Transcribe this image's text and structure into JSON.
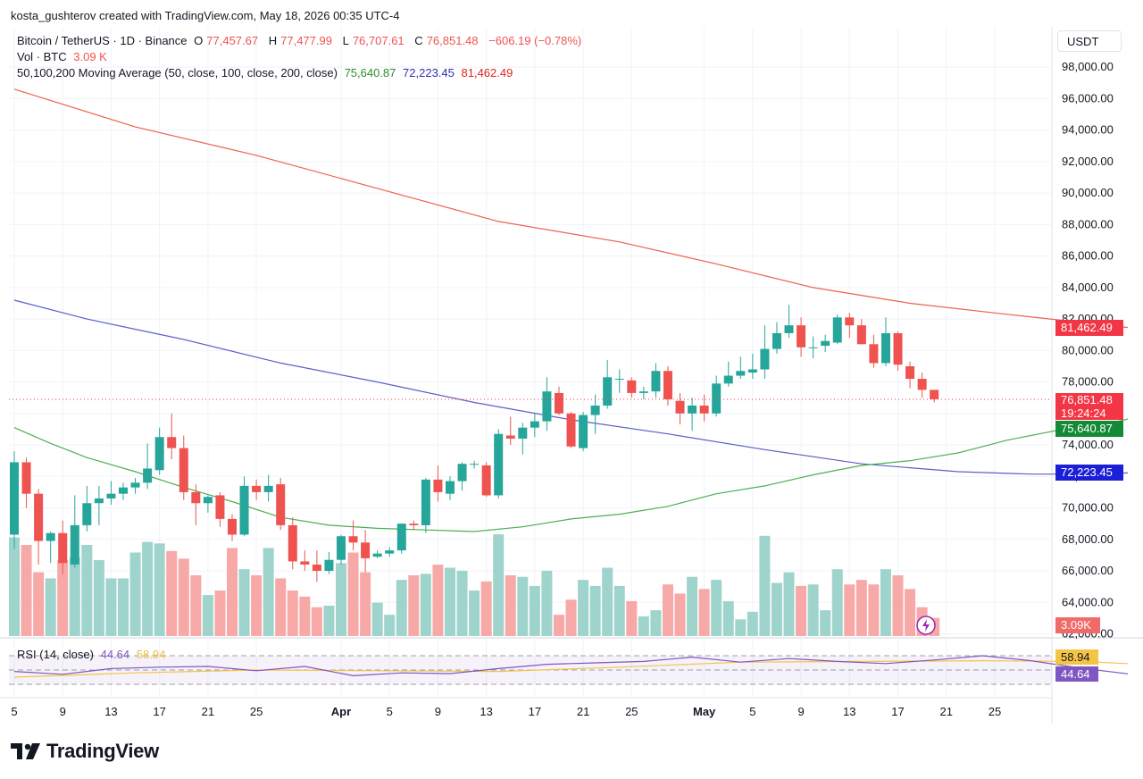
{
  "caption": "kosta_gushterov created with TradingView.com, May 18, 2026 00:35 UTC-4",
  "brand": "TradingView",
  "currency": "USDT",
  "legend": {
    "symbol": "Bitcoin / TetherUS · 1D · Binance",
    "o_label": "O",
    "o_value": "77,457.67",
    "h_label": "H",
    "h_value": "77,477.99",
    "l_label": "L",
    "l_value": "76,707.61",
    "c_label": "C",
    "c_value": "76,851.48",
    "change": "−606.19 (−0.78%)",
    "vol_label": "Vol · BTC",
    "vol_value": "3.09 K",
    "ma_label": "50,100,200 Moving Average (50, close, 100, close, 200, close)",
    "ma50": "75,640.87",
    "ma100": "72,223.45",
    "ma200": "81,462.49"
  },
  "rsi": {
    "label": "RSI (14, close)",
    "value": "44.64",
    "ma_value": "58.94"
  },
  "tags": {
    "ma200": "81,462.49",
    "last_price": "76,851.48",
    "countdown": "19:24:24",
    "ma50": "75,640.87",
    "ma100": "72,223.45",
    "volume": "3.09K",
    "rsi_ma": "58.94",
    "rsi": "44.64"
  },
  "colors": {
    "up": "#26a69a",
    "down": "#ef5350",
    "vol_up": "#9fd4cd",
    "vol_down": "#f7a9a7",
    "ma50": "#4caf50",
    "ma100": "#5b5fc7",
    "ma200": "#f0604d",
    "rsi_line": "#7e57c2",
    "rsi_ma": "#f5c445"
  },
  "chart_data": {
    "type": "candlestick",
    "symbol": "Bitcoin / TetherUS · 1D · Binance",
    "y_ticks": [
      "98,000.00",
      "96,000.00",
      "94,000.00",
      "92,000.00",
      "90,000.00",
      "88,000.00",
      "86,000.00",
      "84,000.00",
      "82,000.00",
      "80,000.00",
      "78,000.00",
      "76,000.00",
      "74,000.00",
      "72,000.00",
      "70,000.00",
      "68,000.00",
      "66,000.00",
      "64,000.00",
      "62,000.00"
    ],
    "y_range": [
      62000,
      98000
    ],
    "x_ticks": [
      {
        "label": "5",
        "date": "2026-03-05"
      },
      {
        "label": "9",
        "date": "2026-03-09"
      },
      {
        "label": "13",
        "date": "2026-03-13"
      },
      {
        "label": "17",
        "date": "2026-03-17"
      },
      {
        "label": "21",
        "date": "2026-03-21"
      },
      {
        "label": "25",
        "date": "2026-03-25"
      },
      {
        "label": "Apr",
        "date": "2026-04-01"
      },
      {
        "label": "5",
        "date": "2026-04-05"
      },
      {
        "label": "9",
        "date": "2026-04-09"
      },
      {
        "label": "13",
        "date": "2026-04-13"
      },
      {
        "label": "17",
        "date": "2026-04-17"
      },
      {
        "label": "21",
        "date": "2026-04-21"
      },
      {
        "label": "25",
        "date": "2026-04-25"
      },
      {
        "label": "May",
        "date": "2026-05-01"
      },
      {
        "label": "5",
        "date": "2026-05-05"
      },
      {
        "label": "9",
        "date": "2026-05-09"
      },
      {
        "label": "13",
        "date": "2026-05-13"
      },
      {
        "label": "17",
        "date": "2026-05-17"
      },
      {
        "label": "21",
        "date": "2026-05-21"
      },
      {
        "label": "25",
        "date": "2026-05-25"
      }
    ],
    "start_date": "2026-03-05",
    "ohlc": [
      [
        68300,
        73600,
        67400,
        72900
      ],
      [
        72900,
        73200,
        70000,
        70900
      ],
      [
        70900,
        71200,
        66400,
        67900
      ],
      [
        67900,
        68500,
        66500,
        68400
      ],
      [
        68400,
        69200,
        65800,
        66500
      ],
      [
        66400,
        70800,
        66200,
        68900
      ],
      [
        68900,
        71400,
        68500,
        70300
      ],
      [
        70300,
        71400,
        68900,
        70600
      ],
      [
        70600,
        71700,
        70200,
        70900
      ],
      [
        70900,
        71600,
        70500,
        71300
      ],
      [
        71300,
        71900,
        70900,
        71600
      ],
      [
        71600,
        74100,
        71200,
        72500
      ],
      [
        72400,
        75100,
        72100,
        74500
      ],
      [
        74500,
        76000,
        73100,
        73800
      ],
      [
        73800,
        74600,
        70500,
        71000
      ],
      [
        71000,
        71500,
        68900,
        70300
      ],
      [
        70300,
        70800,
        69700,
        70700
      ],
      [
        70800,
        71000,
        68800,
        69300
      ],
      [
        69300,
        69600,
        67900,
        68300
      ],
      [
        68300,
        72000,
        68200,
        71400
      ],
      [
        71400,
        71800,
        70500,
        71000
      ],
      [
        71000,
        72100,
        70400,
        71400
      ],
      [
        71500,
        71900,
        68600,
        68900
      ],
      [
        68900,
        69400,
        66100,
        66600
      ],
      [
        66600,
        67300,
        66000,
        66400
      ],
      [
        66400,
        67300,
        65300,
        66000
      ],
      [
        66000,
        67200,
        65800,
        66700
      ],
      [
        66700,
        68300,
        66400,
        68200
      ],
      [
        68200,
        69200,
        67300,
        67800
      ],
      [
        67800,
        68600,
        65900,
        66800
      ],
      [
        66900,
        67300,
        66800,
        67100
      ],
      [
        67100,
        67500,
        66900,
        67300
      ],
      [
        67300,
        69000,
        67100,
        69000
      ],
      [
        69000,
        69200,
        68600,
        68900
      ],
      [
        68900,
        71900,
        68400,
        71800
      ],
      [
        71800,
        72700,
        70400,
        71000
      ],
      [
        70900,
        72000,
        70500,
        71700
      ],
      [
        71700,
        72900,
        71100,
        72800
      ],
      [
        72800,
        73000,
        72500,
        72800
      ],
      [
        72700,
        72900,
        70700,
        70800
      ],
      [
        70800,
        75000,
        70600,
        74700
      ],
      [
        74600,
        75800,
        74000,
        74400
      ],
      [
        74400,
        75400,
        73400,
        75100
      ],
      [
        75100,
        76000,
        74500,
        75500
      ],
      [
        75500,
        78300,
        74900,
        77400
      ],
      [
        77300,
        77700,
        75900,
        76000
      ],
      [
        76000,
        76100,
        73800,
        73900
      ],
      [
        73800,
        76100,
        73600,
        75900
      ],
      [
        75900,
        77200,
        74700,
        76500
      ],
      [
        76500,
        79400,
        76300,
        78300
      ],
      [
        78200,
        78800,
        77300,
        78200
      ],
      [
        78100,
        78300,
        77000,
        77300
      ],
      [
        77300,
        77700,
        76900,
        77400
      ],
      [
        77400,
        79200,
        77000,
        78700
      ],
      [
        78700,
        79000,
        76500,
        76900
      ],
      [
        76800,
        77300,
        75300,
        76000
      ],
      [
        76000,
        77000,
        74900,
        76500
      ],
      [
        76500,
        77200,
        75500,
        76000
      ],
      [
        76000,
        78400,
        75800,
        77900
      ],
      [
        77900,
        79300,
        77700,
        78400
      ],
      [
        78400,
        79600,
        78200,
        78700
      ],
      [
        78600,
        79800,
        78200,
        78800
      ],
      [
        78800,
        81600,
        78200,
        80100
      ],
      [
        80100,
        81800,
        79800,
        81100
      ],
      [
        81100,
        82900,
        80800,
        81600
      ],
      [
        81600,
        82100,
        79600,
        80200
      ],
      [
        80200,
        80900,
        79500,
        80200
      ],
      [
        80300,
        81000,
        79900,
        80600
      ],
      [
        80500,
        82300,
        80400,
        82100
      ],
      [
        82100,
        82400,
        80800,
        81600
      ],
      [
        81600,
        82000,
        80400,
        80400
      ],
      [
        80400,
        81000,
        78900,
        79200
      ],
      [
        79200,
        82100,
        79000,
        81100
      ],
      [
        81100,
        81200,
        78700,
        79100
      ],
      [
        79000,
        79300,
        77600,
        78200
      ],
      [
        78200,
        78600,
        77000,
        77500
      ],
      [
        77500,
        77500,
        76700,
        76900
      ]
    ],
    "volume_level": [
      0.65,
      0.6,
      0.42,
      0.38,
      0.5,
      0.52,
      0.6,
      0.5,
      0.38,
      0.38,
      0.55,
      0.62,
      0.61,
      0.56,
      0.51,
      0.4,
      0.27,
      0.3,
      0.58,
      0.44,
      0.4,
      0.58,
      0.38,
      0.3,
      0.26,
      0.19,
      0.2,
      0.48,
      0.55,
      0.42,
      0.22,
      0.14,
      0.37,
      0.4,
      0.41,
      0.47,
      0.45,
      0.43,
      0.3,
      0.36,
      0.67,
      0.4,
      0.39,
      0.33,
      0.43,
      0.14,
      0.24,
      0.37,
      0.33,
      0.45,
      0.33,
      0.23,
      0.13,
      0.17,
      0.34,
      0.28,
      0.39,
      0.31,
      0.37,
      0.23,
      0.11,
      0.16,
      0.66,
      0.35,
      0.42,
      0.33,
      0.34,
      0.17,
      0.44,
      0.34,
      0.37,
      0.34,
      0.44,
      0.4,
      0.31,
      0.19,
      0.12
    ],
    "ma50": [
      {
        "d": 0,
        "v": 75100
      },
      {
        "d": 3,
        "v": 74100
      },
      {
        "d": 6,
        "v": 73200
      },
      {
        "d": 10,
        "v": 72300
      },
      {
        "d": 14,
        "v": 71300
      },
      {
        "d": 18,
        "v": 70400
      },
      {
        "d": 22,
        "v": 69400
      },
      {
        "d": 26,
        "v": 68900
      },
      {
        "d": 30,
        "v": 68700
      },
      {
        "d": 34,
        "v": 68600
      },
      {
        "d": 38,
        "v": 68500
      },
      {
        "d": 42,
        "v": 68800
      },
      {
        "d": 46,
        "v": 69300
      },
      {
        "d": 50,
        "v": 69600
      },
      {
        "d": 54,
        "v": 70100
      },
      {
        "d": 58,
        "v": 70900
      },
      {
        "d": 62,
        "v": 71400
      },
      {
        "d": 66,
        "v": 72100
      },
      {
        "d": 70,
        "v": 72700
      },
      {
        "d": 74,
        "v": 73000
      },
      {
        "d": 78,
        "v": 73500
      },
      {
        "d": 82,
        "v": 74300
      },
      {
        "d": 86,
        "v": 74900
      },
      {
        "d": 90,
        "v": 75300
      },
      {
        "d": 92,
        "v": 75640.87
      }
    ],
    "ma100": [
      {
        "d": 0,
        "v": 83200
      },
      {
        "d": 6,
        "v": 82000
      },
      {
        "d": 14,
        "v": 80700
      },
      {
        "d": 22,
        "v": 79200
      },
      {
        "d": 30,
        "v": 78000
      },
      {
        "d": 38,
        "v": 76700
      },
      {
        "d": 46,
        "v": 75600
      },
      {
        "d": 54,
        "v": 74700
      },
      {
        "d": 62,
        "v": 73700
      },
      {
        "d": 70,
        "v": 72800
      },
      {
        "d": 78,
        "v": 72300
      },
      {
        "d": 84,
        "v": 72150
      },
      {
        "d": 88,
        "v": 72150
      },
      {
        "d": 92,
        "v": 72223.45
      }
    ],
    "ma200": [
      {
        "d": 0,
        "v": 96600
      },
      {
        "d": 10,
        "v": 94200
      },
      {
        "d": 20,
        "v": 92400
      },
      {
        "d": 30,
        "v": 90300
      },
      {
        "d": 40,
        "v": 88200
      },
      {
        "d": 50,
        "v": 86900
      },
      {
        "d": 58,
        "v": 85500
      },
      {
        "d": 66,
        "v": 84000
      },
      {
        "d": 74,
        "v": 83000
      },
      {
        "d": 82,
        "v": 82300
      },
      {
        "d": 88,
        "v": 81800
      },
      {
        "d": 92,
        "v": 81462.49
      }
    ],
    "rsi_values": [
      {
        "d": 0,
        "v": 48
      },
      {
        "d": 4,
        "v": 44
      },
      {
        "d": 8,
        "v": 52
      },
      {
        "d": 12,
        "v": 54
      },
      {
        "d": 16,
        "v": 55
      },
      {
        "d": 20,
        "v": 49
      },
      {
        "d": 24,
        "v": 55
      },
      {
        "d": 28,
        "v": 42
      },
      {
        "d": 32,
        "v": 46
      },
      {
        "d": 36,
        "v": 45
      },
      {
        "d": 40,
        "v": 52
      },
      {
        "d": 44,
        "v": 58
      },
      {
        "d": 48,
        "v": 60
      },
      {
        "d": 52,
        "v": 62
      },
      {
        "d": 56,
        "v": 68
      },
      {
        "d": 60,
        "v": 61
      },
      {
        "d": 64,
        "v": 66
      },
      {
        "d": 68,
        "v": 62
      },
      {
        "d": 72,
        "v": 59
      },
      {
        "d": 76,
        "v": 64
      },
      {
        "d": 80,
        "v": 70
      },
      {
        "d": 84,
        "v": 63
      },
      {
        "d": 88,
        "v": 53
      },
      {
        "d": 92,
        "v": 44.64
      }
    ],
    "rsi_ma_values": [
      {
        "d": 0,
        "v": 40
      },
      {
        "d": 10,
        "v": 46
      },
      {
        "d": 20,
        "v": 50
      },
      {
        "d": 30,
        "v": 49
      },
      {
        "d": 40,
        "v": 48
      },
      {
        "d": 50,
        "v": 54
      },
      {
        "d": 60,
        "v": 61
      },
      {
        "d": 70,
        "v": 62
      },
      {
        "d": 80,
        "v": 63
      },
      {
        "d": 88,
        "v": 62
      },
      {
        "d": 92,
        "v": 58.94
      }
    ]
  }
}
